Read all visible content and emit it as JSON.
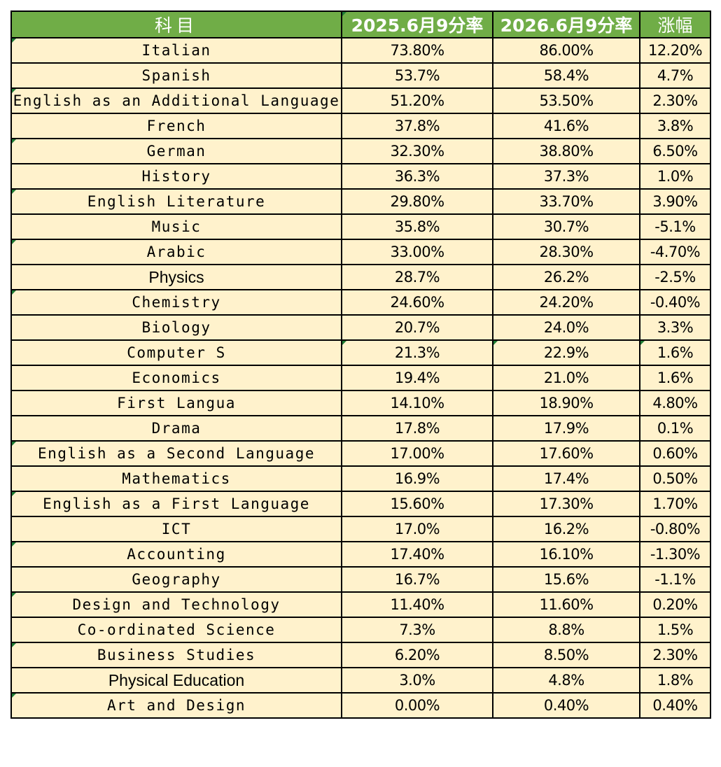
{
  "table": {
    "headers": [
      "科目",
      "2025.6月9分率",
      "2026.6月9分率",
      "涨幅"
    ],
    "rows": [
      {
        "subject": "Italian",
        "y2025": "73.80%",
        "y2026": "86.00%",
        "change": "12.20%"
      },
      {
        "subject": "Spanish",
        "y2025": "53.7%",
        "y2026": "58.4%",
        "change": "4.7%"
      },
      {
        "subject": "English as an Additional Language",
        "y2025": "51.20%",
        "y2026": "53.50%",
        "change": "2.30%"
      },
      {
        "subject": "French",
        "y2025": "37.8%",
        "y2026": "41.6%",
        "change": "3.8%"
      },
      {
        "subject": "German",
        "y2025": "32.30%",
        "y2026": "38.80%",
        "change": "6.50%"
      },
      {
        "subject": "History",
        "y2025": "36.3%",
        "y2026": "37.3%",
        "change": "1.0%"
      },
      {
        "subject": "English Literature",
        "y2025": "29.80%",
        "y2026": "33.70%",
        "change": "3.90%"
      },
      {
        "subject": "Music",
        "y2025": "35.8%",
        "y2026": "30.7%",
        "change": "-5.1%"
      },
      {
        "subject": "Arabic",
        "y2025": "33.00%",
        "y2026": "28.30%",
        "change": "-4.70%"
      },
      {
        "subject": "Physics",
        "y2025": "28.7%",
        "y2026": "26.2%",
        "change": "-2.5%"
      },
      {
        "subject": "Chemistry",
        "y2025": "24.60%",
        "y2026": "24.20%",
        "change": "-0.40%"
      },
      {
        "subject": "Biology",
        "y2025": "20.7%",
        "y2026": "24.0%",
        "change": "3.3%"
      },
      {
        "subject": "Computer S",
        "y2025": "21.3%",
        "y2026": "22.9%",
        "change": "1.6%"
      },
      {
        "subject": "Economics",
        "y2025": "19.4%",
        "y2026": "21.0%",
        "change": "1.6%"
      },
      {
        "subject": "First Langua",
        "y2025": "14.10%",
        "y2026": "18.90%",
        "change": "4.80%"
      },
      {
        "subject": "Drama",
        "y2025": "17.8%",
        "y2026": "17.9%",
        "change": "0.1%"
      },
      {
        "subject": "English as a Second Language",
        "y2025": "17.00%",
        "y2026": "17.60%",
        "change": "0.60%"
      },
      {
        "subject": "Mathematics",
        "y2025": "16.9%",
        "y2026": "17.4%",
        "change": "0.50%"
      },
      {
        "subject": "English as a First Language",
        "y2025": "15.60%",
        "y2026": "17.30%",
        "change": "1.70%"
      },
      {
        "subject": "ICT",
        "y2025": "17.0%",
        "y2026": "16.2%",
        "change": "-0.80%"
      },
      {
        "subject": "Accounting",
        "y2025": "17.40%",
        "y2026": "16.10%",
        "change": "-1.30%"
      },
      {
        "subject": "Geography",
        "y2025": "16.7%",
        "y2026": "15.6%",
        "change": "-1.1%"
      },
      {
        "subject": "Design and Technology",
        "y2025": "11.40%",
        "y2026": "11.60%",
        "change": "0.20%"
      },
      {
        "subject": "Co-ordinated Science",
        "y2025": "7.3%",
        "y2026": "8.8%",
        "change": "1.5%"
      },
      {
        "subject": "Business Studies",
        "y2025": "6.20%",
        "y2026": "8.50%",
        "change": "2.30%"
      },
      {
        "subject": "Physical Education",
        "y2025": "3.0%",
        "y2026": "4.8%",
        "change": "1.8%"
      },
      {
        "subject": "Art and Design",
        "y2025": "0.00%",
        "y2026": "0.40%",
        "change": "0.40%"
      }
    ]
  },
  "colors": {
    "header_bg": "#70ad47",
    "header_text": "#ffffff",
    "cell_bg": "#fff2cc",
    "border": "#000000",
    "comment_marker": "#1e7b34"
  }
}
